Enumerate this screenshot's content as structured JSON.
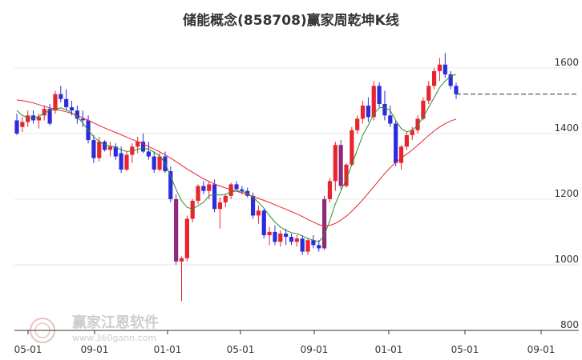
{
  "watermark": {
    "brand": "赢家江恩软件",
    "url": "www.360gann.com"
  },
  "chart_data": {
    "type": "candlestick",
    "title": "储能概念(858708)赢家周乾坤K线",
    "x_ticks": [
      "05-01",
      "09-01",
      "01-01",
      "05-01",
      "09-01",
      "01-01",
      "05-01",
      "09-01"
    ],
    "y_ticks": [
      800,
      1000,
      1200,
      1400,
      1600
    ],
    "ylim": [
      800,
      1680
    ],
    "grid": true,
    "colors": {
      "up": "#e8242f",
      "down": "#2c2cdc",
      "reversal": "#8e2a7a",
      "ma_fast": "#2e8b2e",
      "ma_slow": "#e8242f",
      "reference": "#333333"
    },
    "reference_level": 1520,
    "candles": [
      [
        1440,
        1460,
        1395,
        1400
      ],
      [
        1420,
        1450,
        1405,
        1435
      ],
      [
        1435,
        1470,
        1420,
        1455
      ],
      [
        1455,
        1470,
        1430,
        1440
      ],
      [
        1440,
        1460,
        1415,
        1450
      ],
      [
        1455,
        1485,
        1440,
        1475
      ],
      [
        1475,
        1490,
        1425,
        1430
      ],
      [
        1470,
        1530,
        1460,
        1520
      ],
      [
        1520,
        1545,
        1495,
        1505
      ],
      [
        1505,
        1535,
        1470,
        1480
      ],
      [
        1480,
        1500,
        1455,
        1470
      ],
      [
        1470,
        1485,
        1430,
        1445
      ],
      [
        1445,
        1470,
        1420,
        1440
      ],
      [
        1440,
        1455,
        1370,
        1380
      ],
      [
        1380,
        1395,
        1310,
        1325
      ],
      [
        1325,
        1390,
        1315,
        1375
      ],
      [
        1375,
        1380,
        1345,
        1350
      ],
      [
        1350,
        1375,
        1330,
        1360
      ],
      [
        1360,
        1370,
        1320,
        1330
      ],
      [
        1340,
        1360,
        1280,
        1290
      ],
      [
        1290,
        1345,
        1285,
        1335
      ],
      [
        1335,
        1370,
        1310,
        1360
      ],
      [
        1360,
        1390,
        1340,
        1375
      ],
      [
        1375,
        1400,
        1340,
        1345
      ],
      [
        1345,
        1375,
        1320,
        1330
      ],
      [
        1330,
        1345,
        1280,
        1290
      ],
      [
        1290,
        1340,
        1285,
        1330
      ],
      [
        1330,
        1345,
        1280,
        1285
      ],
      [
        1285,
        1300,
        1190,
        1200
      ],
      [
        1200,
        1215,
        1000,
        1010
      ],
      [
        1010,
        1025,
        890,
        1020
      ],
      [
        1020,
        1150,
        1010,
        1140
      ],
      [
        1140,
        1200,
        1130,
        1195
      ],
      [
        1195,
        1245,
        1185,
        1240
      ],
      [
        1240,
        1255,
        1215,
        1225
      ],
      [
        1225,
        1255,
        1200,
        1245
      ],
      [
        1245,
        1260,
        1160,
        1170
      ],
      [
        1170,
        1205,
        1110,
        1190
      ],
      [
        1190,
        1215,
        1175,
        1210
      ],
      [
        1210,
        1250,
        1200,
        1245
      ],
      [
        1245,
        1255,
        1225,
        1230
      ],
      [
        1230,
        1240,
        1215,
        1225
      ],
      [
        1225,
        1235,
        1205,
        1210
      ],
      [
        1210,
        1220,
        1140,
        1150
      ],
      [
        1150,
        1180,
        1125,
        1165
      ],
      [
        1165,
        1170,
        1080,
        1090
      ],
      [
        1090,
        1115,
        1060,
        1100
      ],
      [
        1100,
        1120,
        1060,
        1070
      ],
      [
        1070,
        1105,
        1055,
        1095
      ],
      [
        1095,
        1110,
        1060,
        1085
      ],
      [
        1085,
        1095,
        1060,
        1070
      ],
      [
        1070,
        1090,
        1055,
        1080
      ],
      [
        1080,
        1090,
        1030,
        1040
      ],
      [
        1040,
        1080,
        1030,
        1075
      ],
      [
        1075,
        1090,
        1050,
        1060
      ],
      [
        1060,
        1075,
        1040,
        1050
      ],
      [
        1050,
        1210,
        1045,
        1200
      ],
      [
        1200,
        1265,
        1190,
        1255
      ],
      [
        1255,
        1375,
        1225,
        1365
      ],
      [
        1365,
        1380,
        1230,
        1240
      ],
      [
        1240,
        1310,
        1235,
        1305
      ],
      [
        1305,
        1420,
        1300,
        1410
      ],
      [
        1410,
        1455,
        1400,
        1445
      ],
      [
        1445,
        1500,
        1430,
        1485
      ],
      [
        1485,
        1510,
        1435,
        1450
      ],
      [
        1450,
        1560,
        1440,
        1545
      ],
      [
        1545,
        1555,
        1480,
        1490
      ],
      [
        1490,
        1530,
        1440,
        1455
      ],
      [
        1455,
        1485,
        1420,
        1430
      ],
      [
        1430,
        1440,
        1300,
        1310
      ],
      [
        1310,
        1365,
        1290,
        1360
      ],
      [
        1360,
        1405,
        1350,
        1395
      ],
      [
        1395,
        1420,
        1380,
        1410
      ],
      [
        1410,
        1455,
        1400,
        1445
      ],
      [
        1445,
        1510,
        1440,
        1500
      ],
      [
        1500,
        1560,
        1490,
        1545
      ],
      [
        1545,
        1600,
        1535,
        1590
      ],
      [
        1590,
        1630,
        1560,
        1610
      ],
      [
        1610,
        1645,
        1570,
        1580
      ],
      [
        1580,
        1590,
        1535,
        1545
      ],
      [
        1545,
        1555,
        1505,
        1520
      ]
    ],
    "ma_fast": [
      1470,
      1455,
      1448,
      1447,
      1452,
      1462,
      1470,
      1475,
      1478,
      1472,
      1463,
      1450,
      1432,
      1410,
      1390,
      1376,
      1366,
      1362,
      1358,
      1350,
      1345,
      1347,
      1352,
      1356,
      1352,
      1343,
      1332,
      1310,
      1270,
      1230,
      1195,
      1175,
      1170,
      1180,
      1190,
      1210,
      1215,
      1212,
      1215,
      1222,
      1225,
      1224,
      1218,
      1205,
      1190,
      1172,
      1150,
      1130,
      1115,
      1105,
      1098,
      1094,
      1088,
      1080,
      1075,
      1070,
      1090,
      1135,
      1185,
      1225,
      1260,
      1305,
      1350,
      1395,
      1425,
      1460,
      1478,
      1480,
      1470,
      1440,
      1415,
      1405,
      1410,
      1425,
      1450,
      1480,
      1510,
      1540,
      1560,
      1575,
      1580
    ],
    "ma_slow": [
      1502,
      1500,
      1497,
      1493,
      1488,
      1483,
      1478,
      1474,
      1470,
      1466,
      1461,
      1455,
      1448,
      1440,
      1432,
      1424,
      1417,
      1410,
      1403,
      1396,
      1389,
      1382,
      1375,
      1368,
      1360,
      1352,
      1344,
      1335,
      1325,
      1314,
      1303,
      1292,
      1282,
      1272,
      1262,
      1254,
      1246,
      1240,
      1234,
      1229,
      1224,
      1219,
      1214,
      1208,
      1202,
      1196,
      1190,
      1183,
      1176,
      1169,
      1162,
      1155,
      1147,
      1138,
      1130,
      1122,
      1118,
      1120,
      1126,
      1136,
      1148,
      1163,
      1180,
      1198,
      1218,
      1238,
      1258,
      1278,
      1296,
      1312,
      1325,
      1337,
      1350,
      1364,
      1379,
      1394,
      1408,
      1420,
      1430,
      1438,
      1444
    ]
  }
}
